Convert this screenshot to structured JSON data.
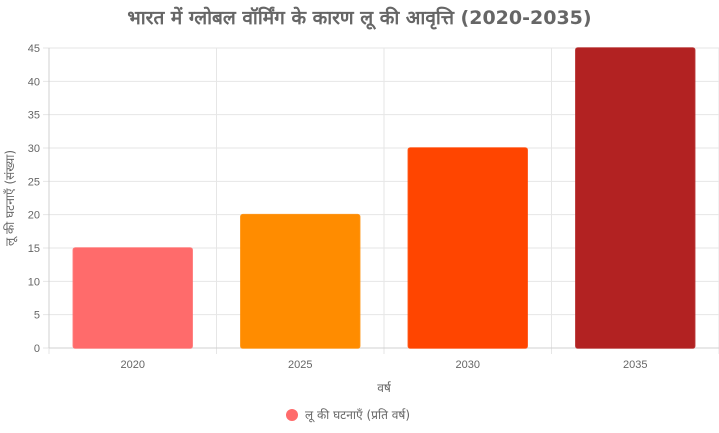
{
  "chart_data": {
    "type": "bar",
    "title": "भारत में ग्लोबल वॉर्मिंग के कारण लू की आवृत्ति (2020-2035)",
    "xlabel": "वर्ष",
    "ylabel": "लू की घटनाएँ (संख्या)",
    "categories": [
      "2020",
      "2025",
      "2030",
      "2035"
    ],
    "series": [
      {
        "name": "लू की घटनाएँ (प्रति वर्ष)",
        "values": [
          15,
          20,
          30,
          45
        ],
        "colors": [
          "#ff6b6b",
          "#ff8c00",
          "#ff4500",
          "#b22222"
        ]
      }
    ],
    "ylim": [
      0,
      45
    ],
    "yticks": [
      0,
      5,
      10,
      15,
      20,
      25,
      30,
      35,
      40,
      45
    ],
    "grid": true,
    "legend": "bottom",
    "legend_color": "#ff6b6b"
  }
}
